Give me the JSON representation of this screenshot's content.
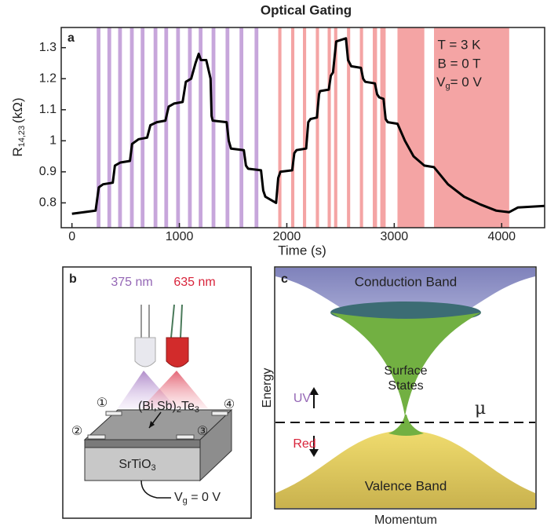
{
  "chart_data": {
    "type": "line",
    "title": "Optical Gating",
    "panel_label": "a",
    "x_label": "Time (s)",
    "y_label": {
      "symbol": "R",
      "subscript": "14,23",
      "unit": "(kΩ)"
    },
    "annotations": {
      "temperature": "T = 3 K",
      "field": "B = 0 T",
      "gate": {
        "symbol": "V",
        "subscript": "g",
        "rest": "= 0 V"
      }
    },
    "xlim": [
      -100,
      4400
    ],
    "ylim": [
      0.72,
      1.365
    ],
    "xticks": [
      0,
      1000,
      2000,
      3000,
      4000
    ],
    "yticks": [
      0.8,
      0.9,
      1,
      1.1,
      1.2,
      1.3
    ],
    "color": "#000000",
    "x": [
      0,
      220,
      250,
      290,
      380,
      400,
      450,
      540,
      560,
      620,
      700,
      730,
      790,
      870,
      900,
      950,
      1030,
      1060,
      1110,
      1150,
      1180,
      1200,
      1250,
      1290,
      1300,
      1310,
      1440,
      1460,
      1480,
      1600,
      1620,
      1640,
      1760,
      1780,
      1800,
      1900,
      1920,
      1940,
      2050,
      2070,
      2090,
      2180,
      2200,
      2220,
      2280,
      2300,
      2310,
      2390,
      2410,
      2430,
      2460,
      2550,
      2570,
      2600,
      2690,
      2710,
      2730,
      2820,
      2840,
      2860,
      2900,
      2920,
      2940,
      3030,
      3100,
      3180,
      3280,
      3370,
      3500,
      3650,
      3800,
      3950,
      4070,
      4150,
      4400
    ],
    "values": [
      0.765,
      0.775,
      0.85,
      0.86,
      0.865,
      0.92,
      0.93,
      0.935,
      0.99,
      1.005,
      1.01,
      1.05,
      1.06,
      1.065,
      1.11,
      1.12,
      1.125,
      1.19,
      1.2,
      1.25,
      1.28,
      1.26,
      1.26,
      1.2,
      1.08,
      1.065,
      1.06,
      1.0,
      0.975,
      0.97,
      0.92,
      0.91,
      0.905,
      0.84,
      0.82,
      0.8,
      0.88,
      0.9,
      0.905,
      0.96,
      0.97,
      0.975,
      1.06,
      1.07,
      1.075,
      1.15,
      1.16,
      1.165,
      1.21,
      1.22,
      1.32,
      1.33,
      1.26,
      1.24,
      1.235,
      1.2,
      1.19,
      1.185,
      1.15,
      1.14,
      1.135,
      1.07,
      1.06,
      1.055,
      1.0,
      0.95,
      0.92,
      0.915,
      0.86,
      0.82,
      0.795,
      0.775,
      0.77,
      0.785,
      0.79
    ],
    "shaded": [
      {
        "color": "#c7a6db",
        "ranges": [
          [
            230,
            265
          ],
          [
            330,
            365
          ],
          [
            430,
            465
          ],
          [
            540,
            575
          ],
          [
            640,
            675
          ],
          [
            760,
            795
          ],
          [
            860,
            895
          ],
          [
            970,
            1005
          ],
          [
            1080,
            1115
          ],
          [
            1180,
            1215
          ],
          [
            1300,
            1335
          ],
          [
            1430,
            1465
          ],
          [
            1560,
            1595
          ],
          [
            1700,
            1735
          ]
        ]
      },
      {
        "color": "#f4a4a4",
        "ranges": [
          [
            1920,
            1950
          ],
          [
            2040,
            2070
          ],
          [
            2150,
            2180
          ],
          [
            2270,
            2300
          ],
          [
            2380,
            2410
          ],
          [
            2440,
            2470
          ],
          [
            2560,
            2590
          ],
          [
            2680,
            2710
          ],
          [
            2800,
            2840
          ],
          [
            2870,
            2920
          ],
          [
            3030,
            3280
          ],
          [
            3370,
            4070
          ]
        ]
      }
    ]
  },
  "panel_b": {
    "label": "b",
    "uv_wavelength": "375 nm",
    "red_wavelength": "635 nm",
    "film": {
      "open": "(Bi,Sb)",
      "sub1": "2",
      "mid": "Te",
      "sub2": "3"
    },
    "contacts": [
      "①",
      "②",
      "③",
      "④"
    ],
    "substrate": {
      "main": "SrTiO",
      "sub": "3"
    },
    "gate": {
      "symbol": "V",
      "subscript": "g",
      "rest": " = 0 V"
    }
  },
  "panel_c": {
    "label": "c",
    "conduction": "Conduction Band",
    "surface": [
      "Surface",
      "States"
    ],
    "valence": "Valence Band",
    "uv": "UV",
    "red": "Red",
    "mu": "μ",
    "y_label": "Energy",
    "x_label": "Momentum"
  }
}
